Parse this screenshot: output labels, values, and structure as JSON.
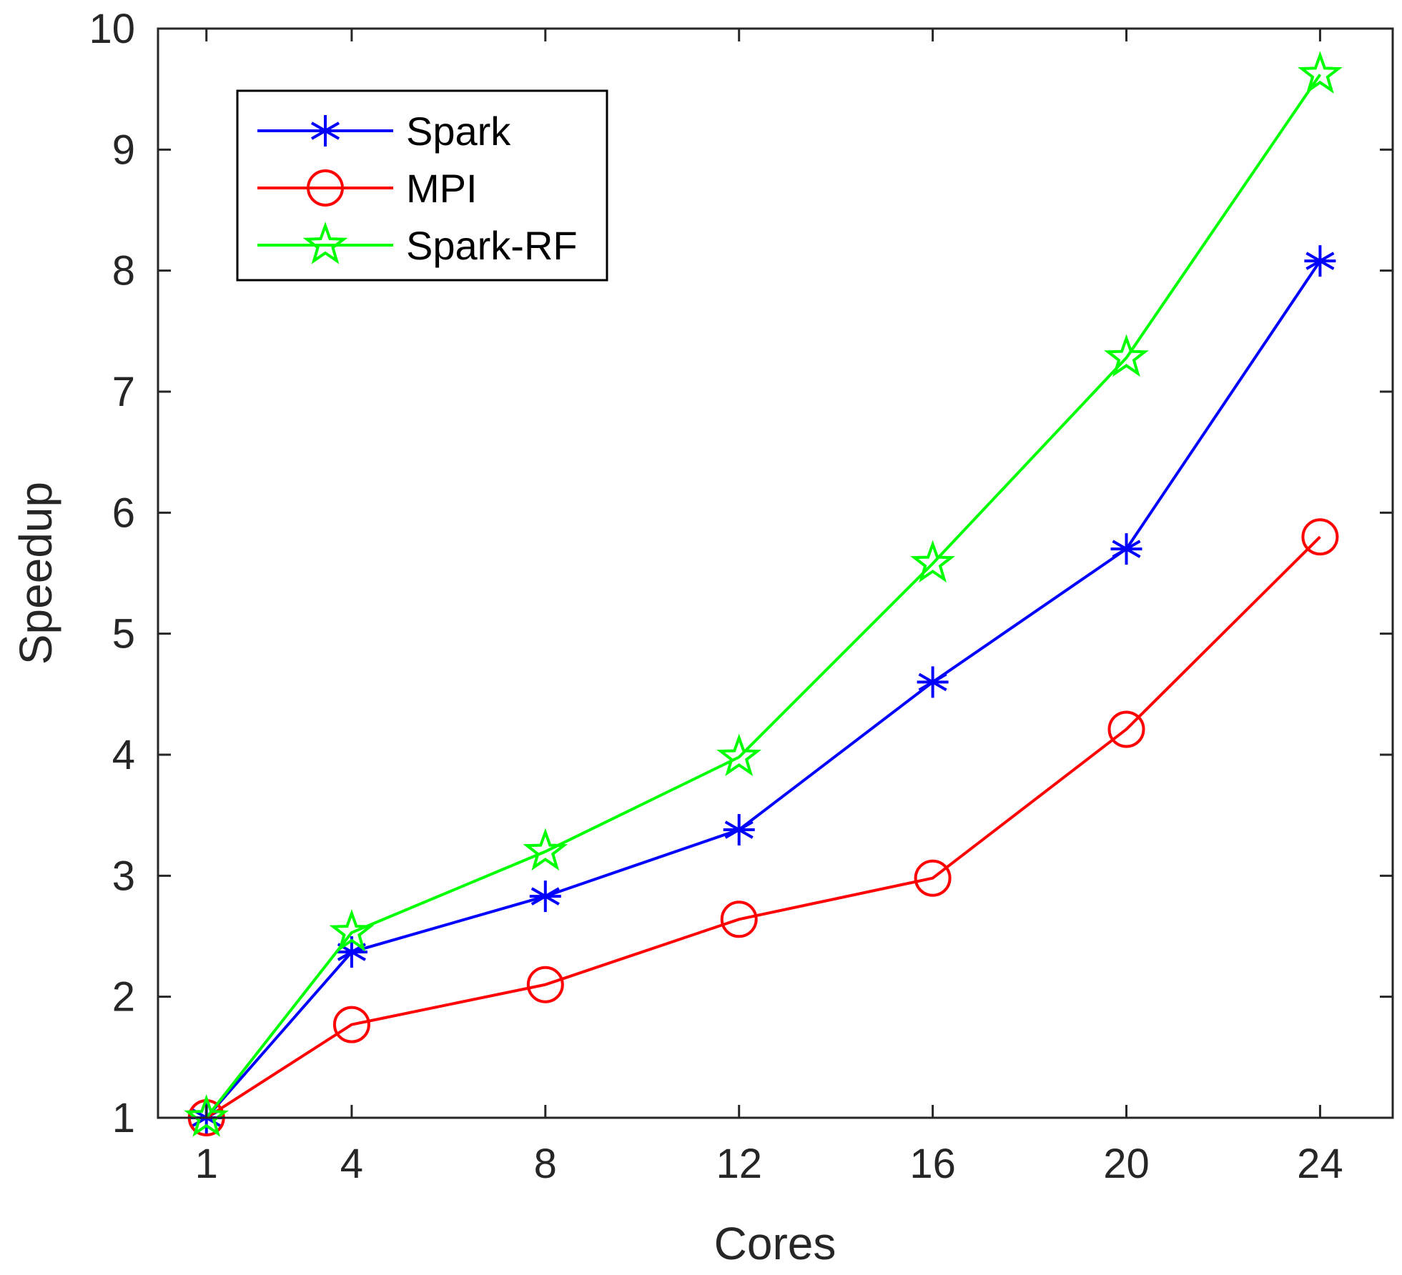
{
  "chart_data": {
    "type": "line",
    "title": "",
    "xlabel": "Cores",
    "ylabel": "Speedup",
    "x": [
      1,
      4,
      8,
      12,
      16,
      20,
      24
    ],
    "x_tick_labels": [
      "1",
      "4",
      "8",
      "12",
      "16",
      "20",
      "24"
    ],
    "y_ticks": [
      1,
      2,
      3,
      4,
      5,
      6,
      7,
      8,
      9,
      10
    ],
    "y_tick_labels": [
      "1",
      "2",
      "3",
      "4",
      "5",
      "6",
      "7",
      "8",
      "9",
      "10"
    ],
    "ylim": [
      1,
      10
    ],
    "xlim": [
      0,
      25.5
    ],
    "grid": false,
    "legend_position": "top-left",
    "series": [
      {
        "name": "Spark",
        "color": "#0000ff",
        "marker": "asterisk",
        "values": [
          1,
          2.37,
          2.83,
          3.38,
          4.6,
          5.7,
          8.08
        ]
      },
      {
        "name": "MPI",
        "color": "#ff0000",
        "marker": "circle",
        "values": [
          1,
          1.77,
          2.1,
          2.64,
          2.98,
          4.21,
          5.8
        ]
      },
      {
        "name": "Spark-RF",
        "color": "#00ff00",
        "marker": "star",
        "values": [
          1,
          2.53,
          3.2,
          3.98,
          5.58,
          7.28,
          9.62
        ]
      }
    ]
  }
}
